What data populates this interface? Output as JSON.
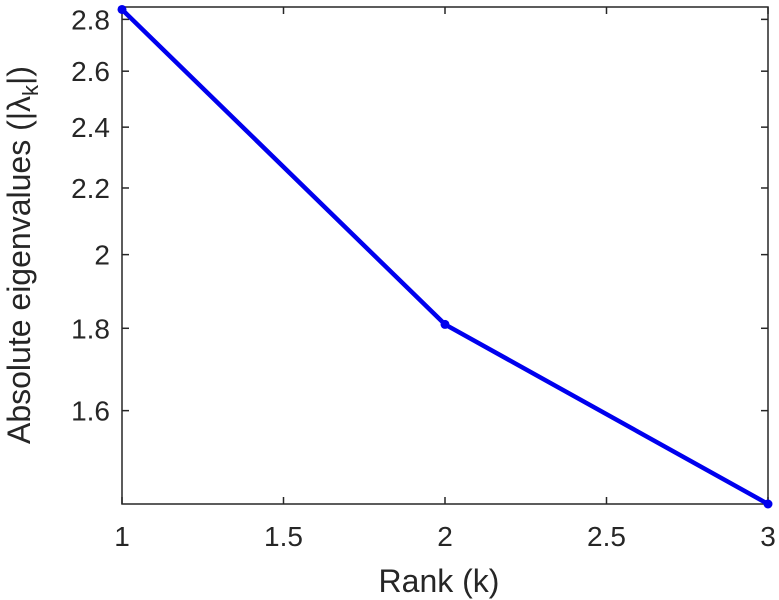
{
  "chart_data": {
    "type": "line",
    "title": "",
    "xlabel": "Rank (k)",
    "ylabel_prefix": "Absolute eigenvalues (|",
    "ylabel_symbol": "λ",
    "ylabel_subscript": "k",
    "ylabel_suffix": "|)",
    "xlim": [
      1,
      3
    ],
    "ylim": [
      1.4,
      2.85
    ],
    "y_scale": "log",
    "grid": false,
    "x_ticks": [
      1,
      1.5,
      2,
      2.5,
      3
    ],
    "x_tick_labels": [
      "1",
      "1.5",
      "2",
      "2.5",
      "3"
    ],
    "y_ticks": [
      1.6,
      1.8,
      2,
      2.2,
      2.4,
      2.6,
      2.8
    ],
    "y_tick_labels": [
      "1.6",
      "1.8",
      "2",
      "2.2",
      "2.4",
      "2.6",
      "2.8"
    ],
    "series": [
      {
        "color": "#0000ee",
        "marker": "dot",
        "x": [
          1,
          2,
          3
        ],
        "y": [
          2.84,
          1.81,
          1.4
        ]
      }
    ]
  }
}
